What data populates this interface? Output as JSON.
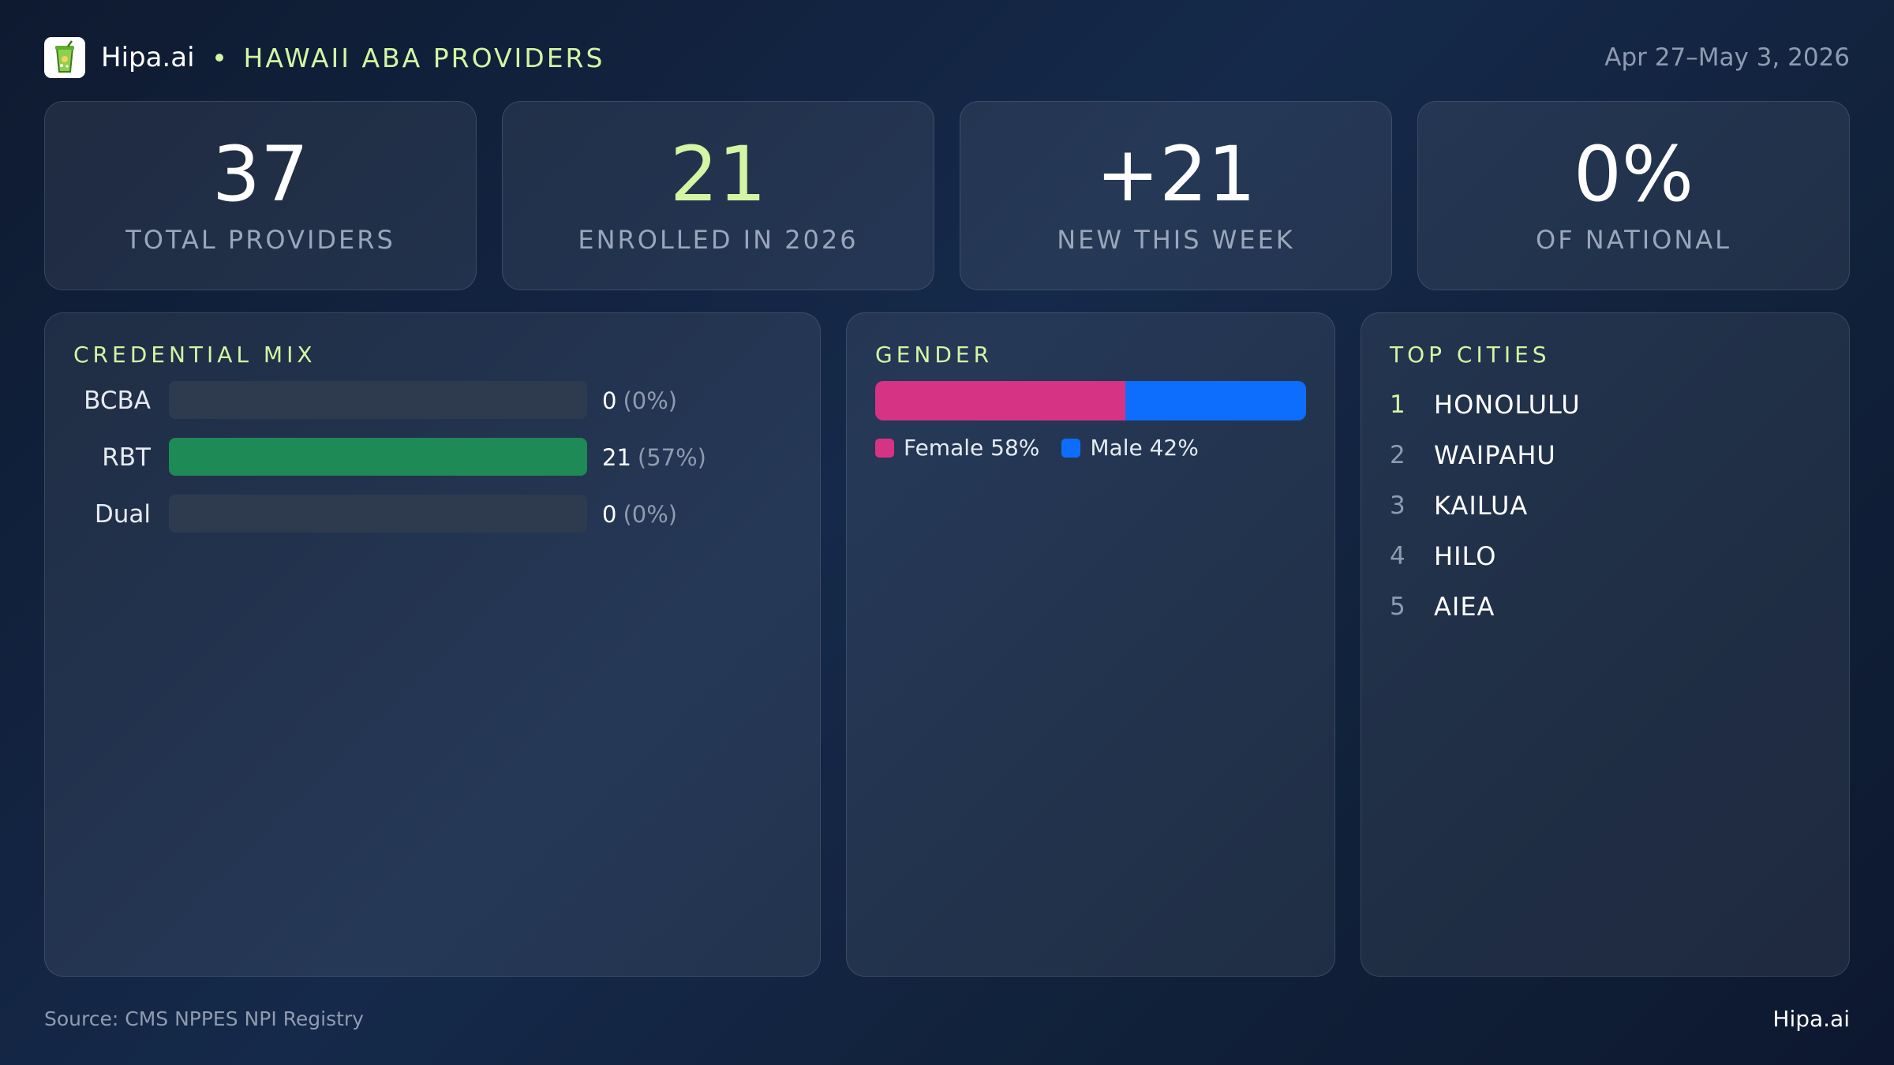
{
  "colors": {
    "accent": "#d4f5a3",
    "rbt_bar": "#1e8a55",
    "female": "#d63384",
    "male": "#0d6efd",
    "empty_track": "#2e3b4f"
  },
  "header": {
    "logo_icon": "drink-cup-icon",
    "brand": "Hipa.ai",
    "region_title": "HAWAII ABA PROVIDERS",
    "date_range": "Apr 27–May 3, 2026"
  },
  "stats": [
    {
      "value": "37",
      "label": "TOTAL PROVIDERS",
      "accent": false
    },
    {
      "value": "21",
      "label": "ENROLLED IN 2026",
      "accent": true
    },
    {
      "value": "+21",
      "label": "NEW THIS WEEK",
      "accent": false
    },
    {
      "value": "0%",
      "label": "OF NATIONAL",
      "accent": false
    }
  ],
  "credential_mix": {
    "title": "CREDENTIAL MIX",
    "rows": [
      {
        "label": "BCBA",
        "count": "0",
        "percent_text": "(0%)",
        "fraction": 0
      },
      {
        "label": "RBT",
        "count": "21",
        "percent_text": "(57%)",
        "fraction": 1.0
      },
      {
        "label": "Dual",
        "count": "0",
        "percent_text": "(0%)",
        "fraction": 0
      }
    ]
  },
  "gender": {
    "title": "GENDER",
    "female_fraction": 0.58,
    "male_fraction": 0.42,
    "female_label": "Female 58%",
    "male_label": "Male 42%"
  },
  "top_cities": {
    "title": "TOP CITIES",
    "items": [
      {
        "rank": "1",
        "name": "HONOLULU"
      },
      {
        "rank": "2",
        "name": "WAIPAHU"
      },
      {
        "rank": "3",
        "name": "KAILUA"
      },
      {
        "rank": "4",
        "name": "HILO"
      },
      {
        "rank": "5",
        "name": "AIEA"
      }
    ]
  },
  "footer": {
    "source": "Source: CMS NPPES NPI Registry",
    "brand": "Hipa.ai"
  }
}
